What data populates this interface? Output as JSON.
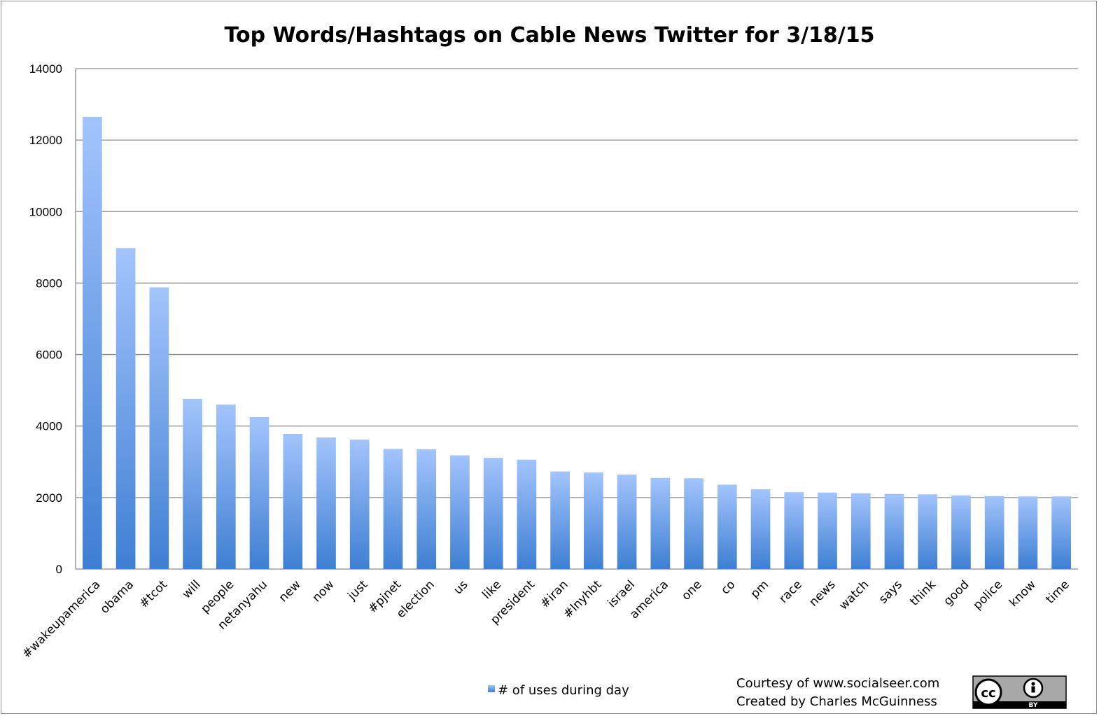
{
  "chart_data": {
    "type": "bar",
    "title": "Top Words/Hashtags on Cable News Twitter for 3/18/15",
    "xlabel": "",
    "ylabel": "",
    "ylim": [
      0,
      14000
    ],
    "yticks": [
      0,
      2000,
      4000,
      6000,
      8000,
      10000,
      12000,
      14000
    ],
    "grid": true,
    "legend_position": "bottom",
    "categories": [
      "#wakeupamerica",
      "obama",
      "#tcot",
      "will",
      "people",
      "netanyahu",
      "new",
      "now",
      "just",
      "#pjnet",
      "election",
      "us",
      "like",
      "president",
      "#iran",
      "#lnyhbt",
      "israel",
      "america",
      "one",
      "co",
      "pm",
      "race",
      "news",
      "watch",
      "says",
      "think",
      "good",
      "police",
      "know",
      "time"
    ],
    "series": [
      {
        "name": "# of uses during day",
        "values": [
          12650,
          8980,
          7880,
          4760,
          4600,
          4250,
          3780,
          3680,
          3620,
          3360,
          3350,
          3180,
          3110,
          3060,
          2730,
          2700,
          2640,
          2550,
          2540,
          2360,
          2230,
          2150,
          2140,
          2120,
          2100,
          2090,
          2060,
          2040,
          2030,
          2030
        ]
      }
    ],
    "colors": {
      "bar_top": "#a3c4fc",
      "bar_bottom": "#3e7fd3",
      "grid": "#8c8c8c",
      "axis": "#8c8c8c"
    }
  },
  "footer": {
    "courtesy": "Courtesy of www.socialseer.com",
    "created_by": "Created by Charles McGuinness"
  },
  "license_badge": {
    "icon": "creative-commons-by-icon",
    "cc_label": "cc",
    "by_label": "BY"
  }
}
